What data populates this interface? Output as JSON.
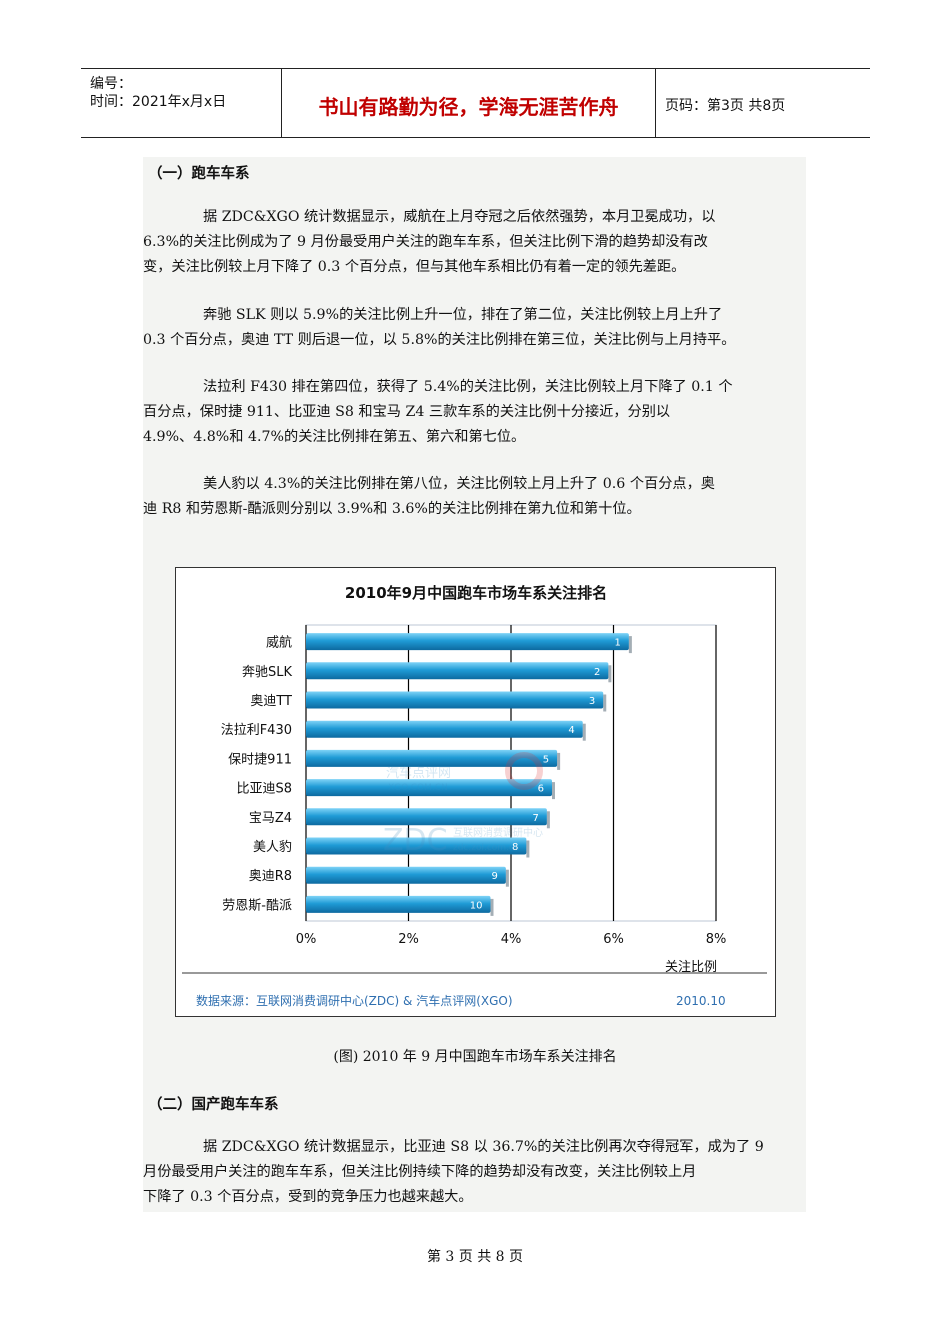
{
  "header": {
    "number_label": "编号：",
    "date_label": "时间：2021年x月x日",
    "motto": "书山有路勤为径，学海无涯苦作舟",
    "page_label": "页码：第3页  共8页"
  },
  "section1": {
    "heading": "（一）跑车车系",
    "paragraphs": [
      [
        "据 ZDC&XGO 统计数据显示，威航在上月夺冠之后依然强势，本月卫冕成功，以",
        "6.3%的关注比例成为了 9 月份最受用户关注的跑车车系，但关注比例下滑的趋势却没有改",
        "变，关注比例较上月下降了 0.3 个百分点，但与其他车系相比仍有着一定的领先差距。"
      ],
      [
        "奔驰 SLK 则以 5.9%的关注比例上升一位，排在了第二位，关注比例较上月上升了",
        "0.3 个百分点，奥迪 TT 则后退一位，以 5.8%的关注比例排在第三位，关注比例与上月持平。"
      ],
      [
        "法拉利 F430 排在第四位，获得了 5.4%的关注比例，关注比例较上月下降了 0.1 个",
        "百分点，保时捷 911、比亚迪 S8 和宝马 Z4 三款车系的关注比例十分接近，分别以",
        "4.9%、4.8%和 4.7%的关注比例排在第五、第六和第七位。"
      ],
      [
        "美人豹以 4.3%的关注比例排在第八位，关注比例较上月上升了 0.6 个百分点，奥",
        "迪 R8 和劳恩斯-酷派则分别以 3.9%和 3.6%的关注比例排在第九位和第十位。"
      ]
    ]
  },
  "chart_data": {
    "type": "bar",
    "orientation": "horizontal",
    "title": "2010年9月中国跑车市场车系关注排名",
    "categories": [
      "威航",
      "奔驰SLK",
      "奥迪TT",
      "法拉利F430",
      "保时捷911",
      "比亚迪S8",
      "宝马Z4",
      "美人豹",
      "奥迪R8",
      "劳恩斯-酷派"
    ],
    "values": [
      6.3,
      5.9,
      5.8,
      5.4,
      4.9,
      4.8,
      4.7,
      4.3,
      3.9,
      3.6
    ],
    "value_unit": "%",
    "rank_labels": [
      "1",
      "2",
      "3",
      "4",
      "5",
      "6",
      "7",
      "8",
      "9",
      "10"
    ],
    "x_ticks": [
      "0%",
      "2%",
      "4%",
      "6%",
      "8%"
    ],
    "xlim": [
      0,
      8
    ],
    "xlabel": "关注比例",
    "grid": true,
    "bar_color": "#1f9bd6",
    "source": "数据来源：互联网消费调研中心(ZDC) & 汽车点评网(XGO)",
    "date": "2010.10",
    "watermark": [
      "汽车点评网",
      "XGO.COM.CN",
      "ZDC",
      "互联网消费调研中心",
      "zdc.zol.com.cn"
    ]
  },
  "caption": "(图) 2010 年 9 月中国跑车市场车系关注排名",
  "section2": {
    "heading": "（二）国产跑车车系",
    "paragraphs": [
      [
        "据 ZDC&XGO 统计数据显示，比亚迪 S8 以 36.7%的关注比例再次夺得冠军，成为了 9",
        "月份最受用户关注的跑车车系，但关注比例持续下降的趋势却没有改变，关注比例较上月",
        "下降了 0.3 个百分点，受到的竞争压力也越来越大。"
      ]
    ]
  },
  "footer": "第 3 页 共 8 页"
}
